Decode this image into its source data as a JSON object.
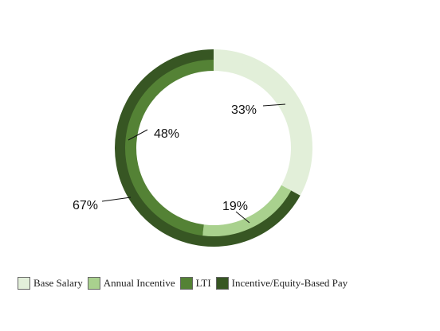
{
  "chart_data": {
    "type": "pie",
    "subtype": "nested-donut",
    "series": [
      {
        "ring": "outer",
        "slices": [
          {
            "label": "Base Salary",
            "value": 33,
            "display": "33%",
            "color": "#e2efd9"
          },
          {
            "label": "Incentive/Equity-Based Pay",
            "value": 67,
            "display": "67%",
            "color": "#375623"
          }
        ]
      },
      {
        "ring": "inner",
        "slices": [
          {
            "label": "Base Salary",
            "value": 33,
            "display": "33%",
            "color": "#e2efd9"
          },
          {
            "label": "Annual Incentive",
            "value": 19,
            "display": "19%",
            "color": "#a9d18e"
          },
          {
            "label": "LTI",
            "value": 48,
            "display": "48%",
            "color": "#548235"
          }
        ]
      }
    ],
    "legend": {
      "position": "bottom",
      "items": [
        {
          "label": "Base Salary",
          "color": "#e2efd9"
        },
        {
          "label": "Annual Incentive",
          "color": "#a9d18e"
        },
        {
          "label": "LTI",
          "color": "#548235"
        },
        {
          "label": "Incentive/Equity-Based Pay",
          "color": "#375623"
        }
      ]
    }
  }
}
